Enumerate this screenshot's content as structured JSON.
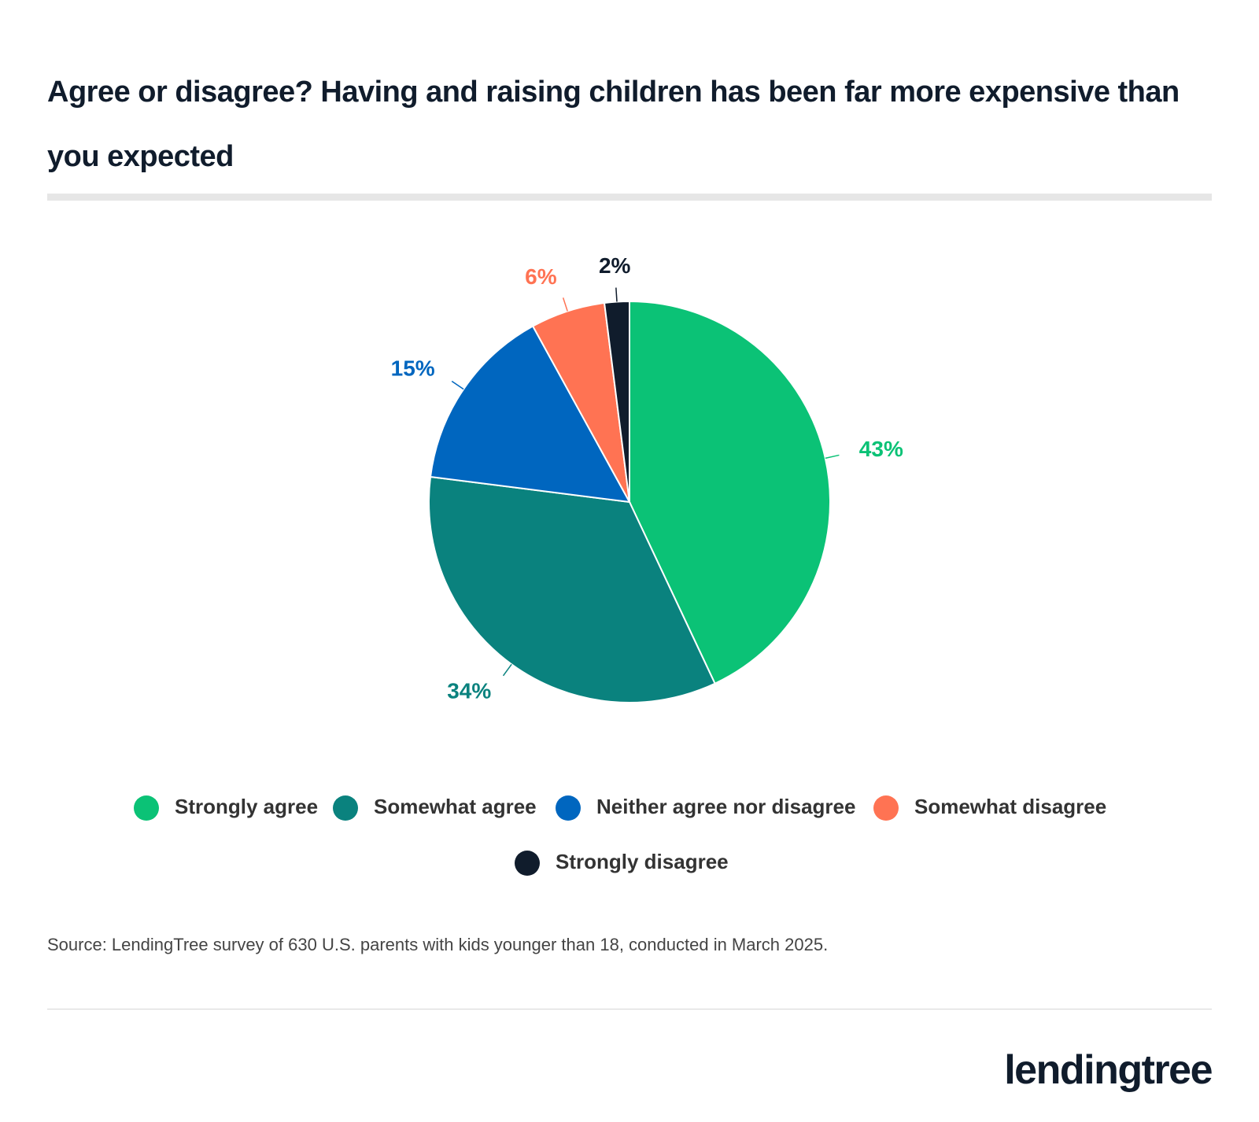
{
  "chart_data": {
    "type": "pie",
    "title": "Agree or disagree? Having and raising children has been far more expensive than you expected",
    "categories": [
      "Strongly agree",
      "Somewhat agree",
      "Neither agree nor disagree",
      "Somewhat disagree",
      "Strongly disagree"
    ],
    "values": [
      43,
      34,
      15,
      6,
      2
    ],
    "value_labels": [
      "43%",
      "34%",
      "15%",
      "6%",
      "2%"
    ],
    "colors": [
      "#0bc276",
      "#0a827e",
      "#0066bf",
      "#ff7353",
      "#101c2c"
    ],
    "source": "Source: LendingTree survey of 630 U.S. parents with kids younger than 18, conducted in March 2025.",
    "logo": "lendingtree"
  }
}
